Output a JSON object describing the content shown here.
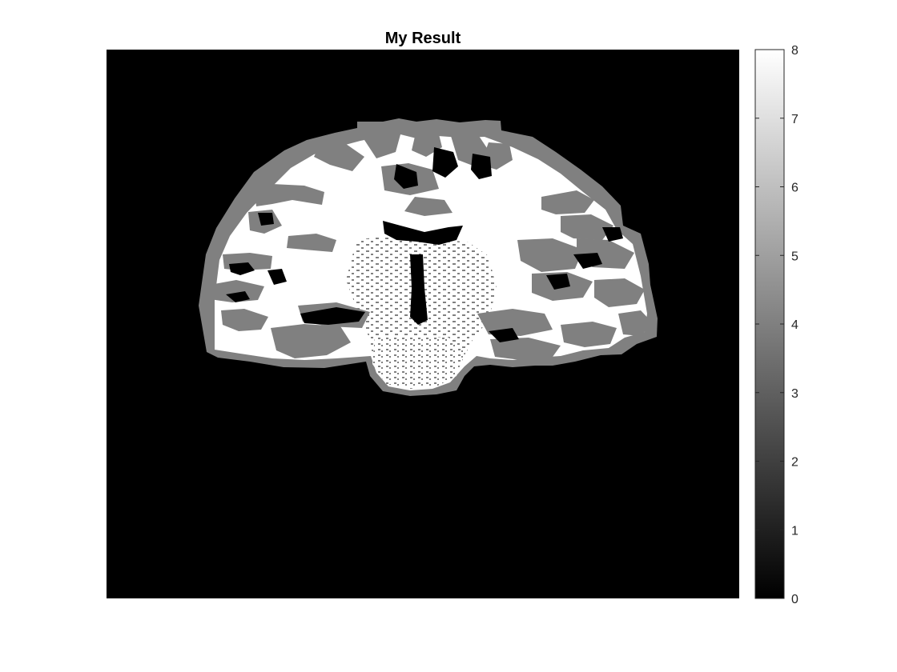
{
  "figure": {
    "title": "My Result"
  },
  "image": {
    "description_colormap": "gray",
    "background_color": "#000000"
  },
  "colorbar": {
    "min": 0,
    "max": 8,
    "ticks": [
      "0",
      "1",
      "2",
      "3",
      "4",
      "5",
      "6",
      "7",
      "8"
    ]
  }
}
